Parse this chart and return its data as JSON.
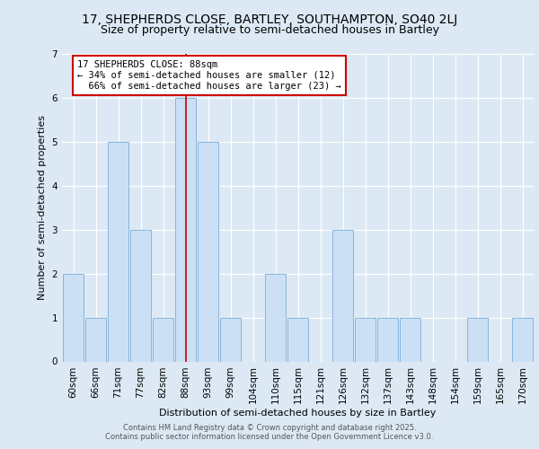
{
  "title": "17, SHEPHERDS CLOSE, BARTLEY, SOUTHAMPTON, SO40 2LJ",
  "subtitle": "Size of property relative to semi-detached houses in Bartley",
  "xlabel": "Distribution of semi-detached houses by size in Bartley",
  "ylabel": "Number of semi-detached properties",
  "bins": [
    "60sqm",
    "66sqm",
    "71sqm",
    "77sqm",
    "82sqm",
    "88sqm",
    "93sqm",
    "99sqm",
    "104sqm",
    "110sqm",
    "115sqm",
    "121sqm",
    "126sqm",
    "132sqm",
    "137sqm",
    "143sqm",
    "148sqm",
    "154sqm",
    "159sqm",
    "165sqm",
    "170sqm"
  ],
  "counts": [
    2,
    1,
    5,
    3,
    1,
    6,
    5,
    1,
    0,
    2,
    1,
    0,
    3,
    1,
    1,
    1,
    0,
    0,
    1,
    0,
    1
  ],
  "highlight_bin_index": 5,
  "highlight_label": "17 SHEPHERDS CLOSE: 88sqm",
  "pct_smaller": 34,
  "pct_larger": 66,
  "n_smaller": 12,
  "n_larger": 23,
  "bar_color": "#cce0f5",
  "bar_edge_color": "#7aaed6",
  "highlight_line_color": "#cc0000",
  "annotation_box_color": "#ffffff",
  "annotation_box_edge_color": "#cc0000",
  "background_color": "#dce9f5",
  "plot_bg_color": "#dce9f5",
  "ylim": [
    0,
    7
  ],
  "yticks": [
    0,
    1,
    2,
    3,
    4,
    5,
    6,
    7
  ],
  "title_fontsize": 10,
  "subtitle_fontsize": 9,
  "ylabel_fontsize": 8,
  "xlabel_fontsize": 8,
  "tick_fontsize": 7.5,
  "annotation_fontsize": 7.5,
  "footer_fontsize": 6,
  "footer": "Contains HM Land Registry data © Crown copyright and database right 2025.\nContains public sector information licensed under the Open Government Licence v3.0."
}
